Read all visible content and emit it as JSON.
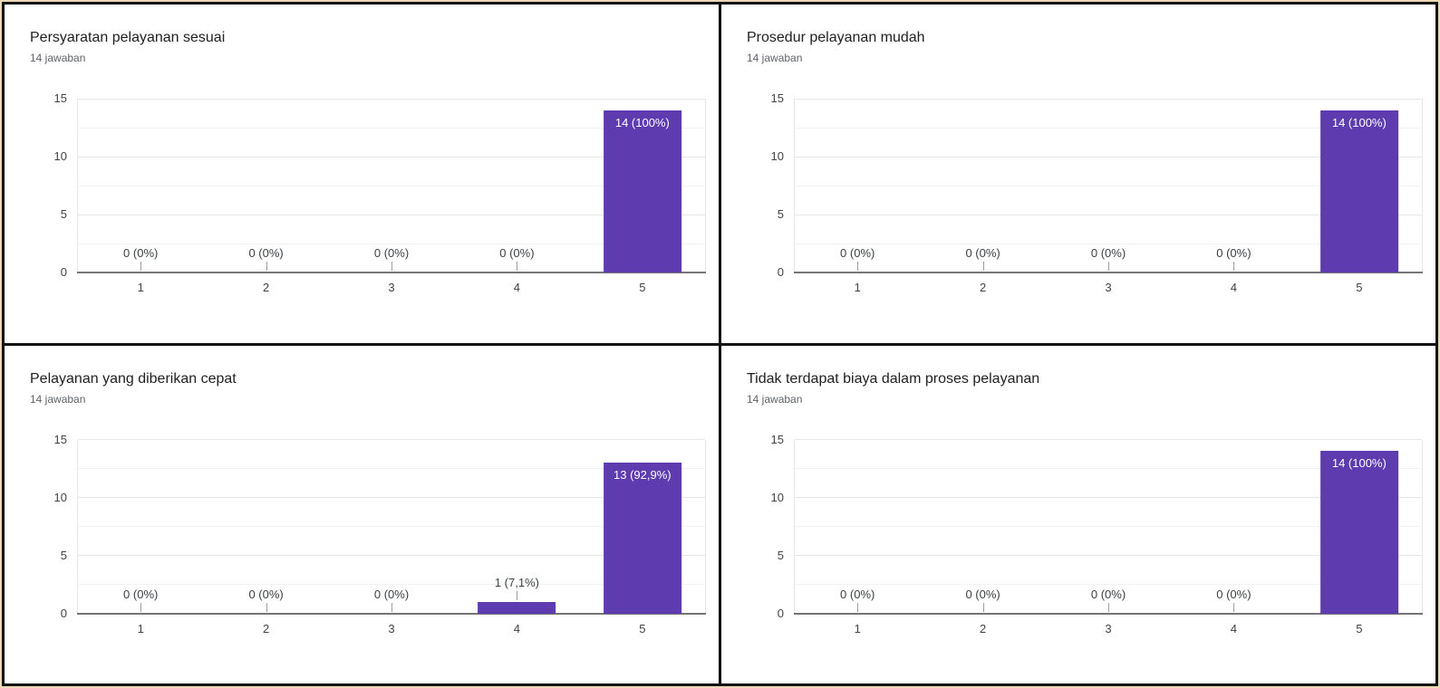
{
  "page": {
    "background_color": "#e9d9b6",
    "border_color": "#131313",
    "panel_background": "#ffffff"
  },
  "chart_style": {
    "bar_color": "#5f3bb0",
    "axis_color": "#757575",
    "grid_major_color": "#e6e6e6",
    "grid_minor_color": "#f3f3f3",
    "plot_edge_color": "#e6e6e6",
    "tick_label_color": "#424242",
    "value_label_color": "#3c4043",
    "value_label_inside_color": "#ffffff",
    "stub_color": "#9e9e9e",
    "title_color": "#212121",
    "subtitle_color": "#5f6368"
  },
  "chart_data": [
    {
      "type": "bar",
      "title": "Persyaratan pelayanan sesuai",
      "subtitle": "14 jawaban",
      "categories": [
        "1",
        "2",
        "3",
        "4",
        "5"
      ],
      "values": [
        0,
        0,
        0,
        0,
        14
      ],
      "value_labels": [
        "0 (0%)",
        "0 (0%)",
        "0 (0%)",
        "0 (0%)",
        "14 (100%)"
      ],
      "xlabel": "",
      "ylabel": "",
      "ylim": [
        0,
        15
      ],
      "yticks": [
        0,
        5,
        10,
        15
      ],
      "grid": true,
      "legend_position": "none"
    },
    {
      "type": "bar",
      "title": "Prosedur pelayanan mudah",
      "subtitle": "14 jawaban",
      "categories": [
        "1",
        "2",
        "3",
        "4",
        "5"
      ],
      "values": [
        0,
        0,
        0,
        0,
        14
      ],
      "value_labels": [
        "0 (0%)",
        "0 (0%)",
        "0 (0%)",
        "0 (0%)",
        "14 (100%)"
      ],
      "xlabel": "",
      "ylabel": "",
      "ylim": [
        0,
        15
      ],
      "yticks": [
        0,
        5,
        10,
        15
      ],
      "grid": true,
      "legend_position": "none"
    },
    {
      "type": "bar",
      "title": "Pelayanan yang diberikan cepat",
      "subtitle": "14 jawaban",
      "categories": [
        "1",
        "2",
        "3",
        "4",
        "5"
      ],
      "values": [
        0,
        0,
        0,
        1,
        13
      ],
      "value_labels": [
        "0 (0%)",
        "0 (0%)",
        "0 (0%)",
        "1 (7,1%)",
        "13 (92,9%)"
      ],
      "xlabel": "",
      "ylabel": "",
      "ylim": [
        0,
        15
      ],
      "yticks": [
        0,
        5,
        10,
        15
      ],
      "grid": true,
      "legend_position": "none"
    },
    {
      "type": "bar",
      "title": "Tidak terdapat biaya dalam proses pelayanan",
      "subtitle": "14 jawaban",
      "categories": [
        "1",
        "2",
        "3",
        "4",
        "5"
      ],
      "values": [
        0,
        0,
        0,
        0,
        14
      ],
      "value_labels": [
        "0 (0%)",
        "0 (0%)",
        "0 (0%)",
        "0 (0%)",
        "14 (100%)"
      ],
      "xlabel": "",
      "ylabel": "",
      "ylim": [
        0,
        15
      ],
      "yticks": [
        0,
        5,
        10,
        15
      ],
      "grid": true,
      "legend_position": "none"
    }
  ]
}
